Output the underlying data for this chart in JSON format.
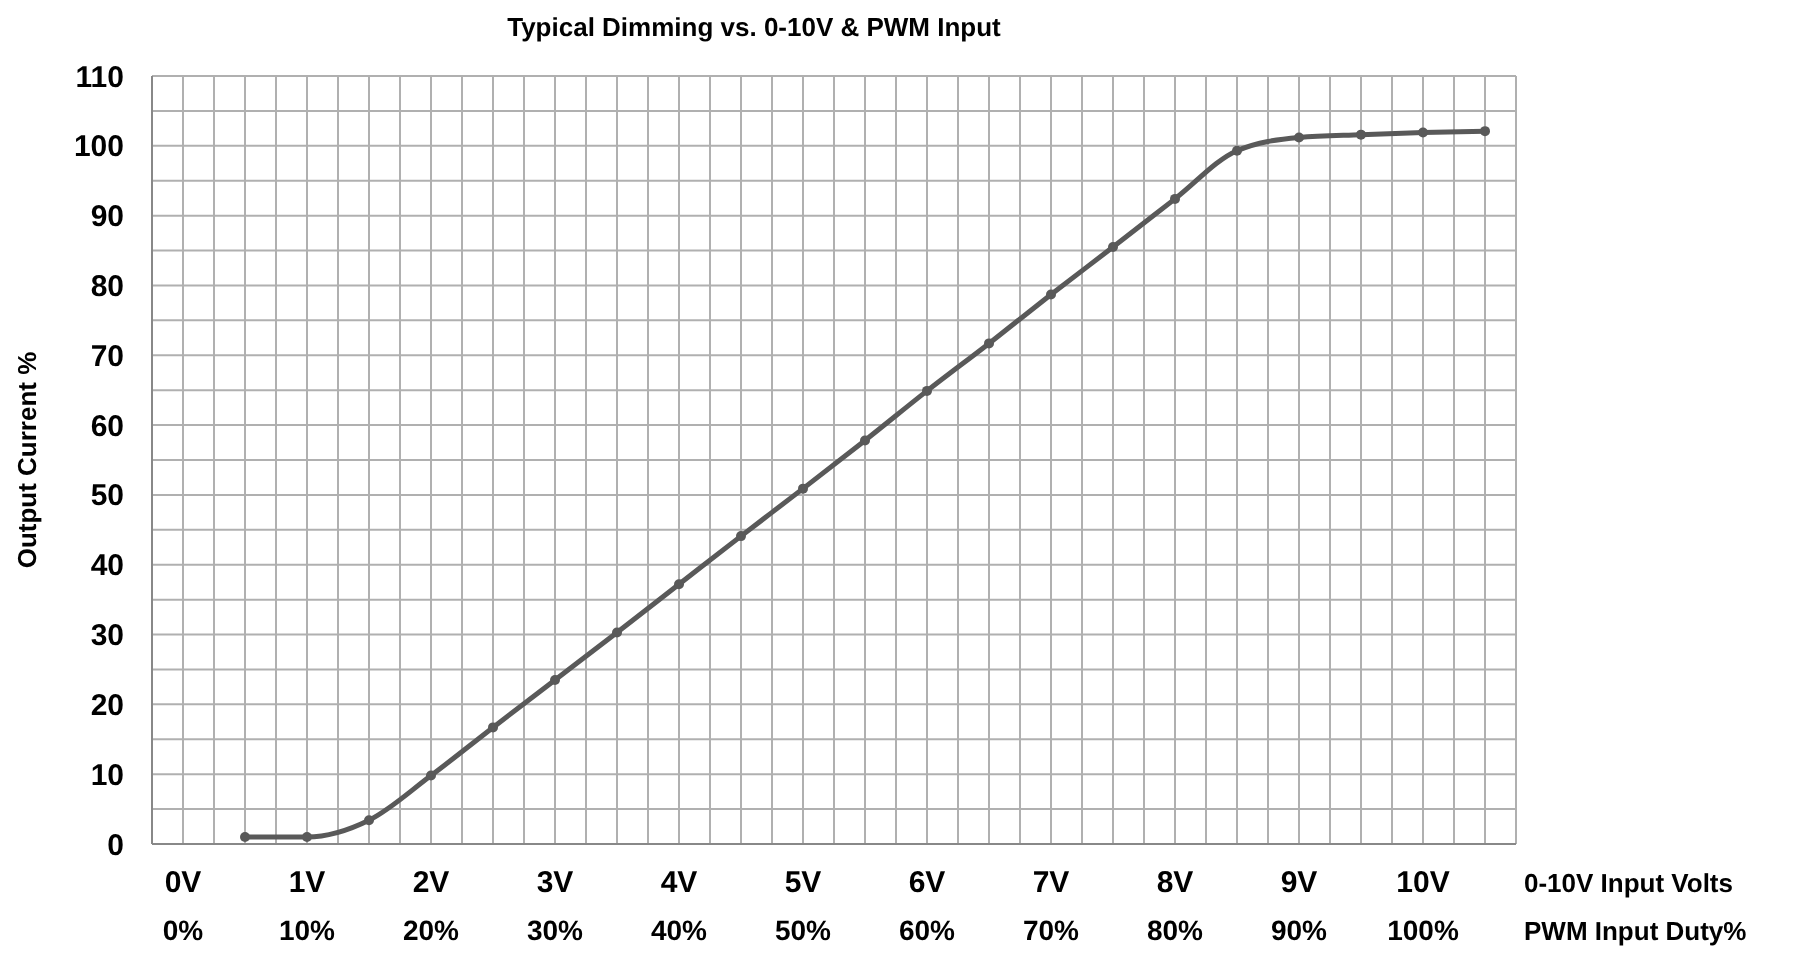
{
  "chart_data": {
    "type": "line",
    "title": "Typical Dimming vs. 0-10V & PWM Input",
    "xlabel": "0-10V Input Volts",
    "x2label": "PWM Input Duty%",
    "ylabel": "Output Current %",
    "x": [
      0.5,
      1,
      1.5,
      2,
      2.5,
      3,
      3.5,
      4,
      4.5,
      5,
      5.5,
      6,
      6.5,
      7,
      7.5,
      8,
      8.5,
      9,
      9.5,
      10,
      10.5
    ],
    "series": [
      {
        "color": "#595959",
        "values": [
          1.0,
          1.0,
          3.4,
          9.8,
          16.7,
          23.5,
          30.3,
          37.2,
          44.1,
          50.9,
          57.8,
          64.9,
          71.7,
          78.7,
          85.5,
          92.4,
          99.3,
          101.2,
          101.6,
          101.9,
          102.1
        ]
      }
    ],
    "xlim": [
      -0.25,
      10.75
    ],
    "xticks": [
      {
        "value": -0.25,
        "label": null
      },
      {
        "value": 0,
        "label": "0V"
      },
      {
        "value": 0.25,
        "label": null
      },
      {
        "value": 0.5,
        "label": null
      },
      {
        "value": 0.75,
        "label": null
      },
      {
        "value": 1,
        "label": "1V"
      },
      {
        "value": 1.25,
        "label": null
      },
      {
        "value": 1.5,
        "label": null
      },
      {
        "value": 1.75,
        "label": null
      },
      {
        "value": 2,
        "label": "2V"
      },
      {
        "value": 2.25,
        "label": null
      },
      {
        "value": 2.5,
        "label": null
      },
      {
        "value": 2.75,
        "label": null
      },
      {
        "value": 3,
        "label": "3V"
      },
      {
        "value": 3.25,
        "label": null
      },
      {
        "value": 3.5,
        "label": null
      },
      {
        "value": 3.75,
        "label": null
      },
      {
        "value": 4,
        "label": "4V"
      },
      {
        "value": 4.25,
        "label": null
      },
      {
        "value": 4.5,
        "label": null
      },
      {
        "value": 4.75,
        "label": null
      },
      {
        "value": 5,
        "label": "5V"
      },
      {
        "value": 5.25,
        "label": null
      },
      {
        "value": 5.5,
        "label": null
      },
      {
        "value": 5.75,
        "label": null
      },
      {
        "value": 6,
        "label": "6V"
      },
      {
        "value": 6.25,
        "label": null
      },
      {
        "value": 6.5,
        "label": null
      },
      {
        "value": 6.75,
        "label": null
      },
      {
        "value": 7,
        "label": "7V"
      },
      {
        "value": 7.25,
        "label": null
      },
      {
        "value": 7.5,
        "label": null
      },
      {
        "value": 7.75,
        "label": null
      },
      {
        "value": 8,
        "label": "8V"
      },
      {
        "value": 8.25,
        "label": null
      },
      {
        "value": 8.5,
        "label": null
      },
      {
        "value": 8.75,
        "label": null
      },
      {
        "value": 9,
        "label": "9V"
      },
      {
        "value": 9.25,
        "label": null
      },
      {
        "value": 9.5,
        "label": null
      },
      {
        "value": 9.75,
        "label": null
      },
      {
        "value": 10,
        "label": "10V"
      },
      {
        "value": 10.25,
        "label": null
      },
      {
        "value": 10.5,
        "label": null
      },
      {
        "value": 10.75,
        "label": null
      }
    ],
    "x2lim": [
      -2.5,
      107.5
    ],
    "x2ticks": [
      {
        "value": 0,
        "label": "0%"
      },
      {
        "value": 10,
        "label": "10%"
      },
      {
        "value": 20,
        "label": "20%"
      },
      {
        "value": 30,
        "label": "30%"
      },
      {
        "value": 40,
        "label": "40%"
      },
      {
        "value": 50,
        "label": "50%"
      },
      {
        "value": 60,
        "label": "60%"
      },
      {
        "value": 70,
        "label": "70%"
      },
      {
        "value": 80,
        "label": "80%"
      },
      {
        "value": 90,
        "label": "90%"
      },
      {
        "value": 100,
        "label": "100%"
      }
    ],
    "ylim": [
      0,
      110
    ],
    "yticks": [
      0,
      {
        "value": 5,
        "label": null
      },
      10,
      {
        "value": 15,
        "label": null
      },
      20,
      {
        "value": 25,
        "label": null
      },
      30,
      {
        "value": 35,
        "label": null
      },
      40,
      {
        "value": 45,
        "label": null
      },
      50,
      {
        "value": 55,
        "label": null
      },
      60,
      {
        "value": 65,
        "label": null
      },
      70,
      {
        "value": 75,
        "label": null
      },
      80,
      {
        "value": 85,
        "label": null
      },
      90,
      {
        "value": 95,
        "label": null
      },
      100,
      {
        "value": 105,
        "label": null
      },
      110
    ],
    "grid": true,
    "marker": "circle",
    "line_style": "solid"
  }
}
